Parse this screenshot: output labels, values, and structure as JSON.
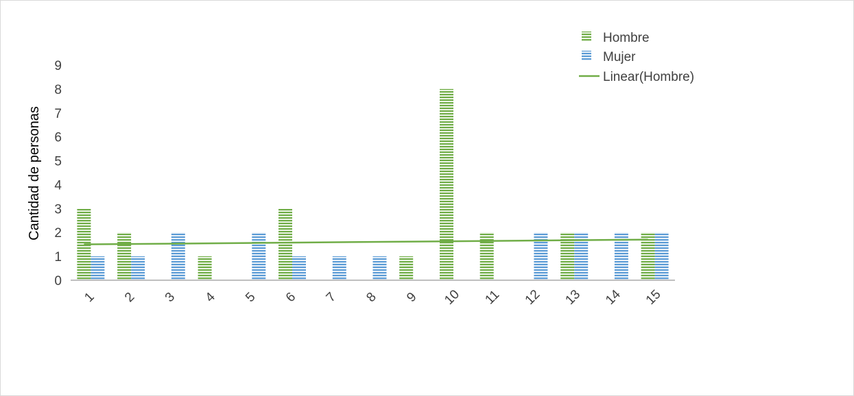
{
  "chart_data": {
    "type": "bar",
    "title": "",
    "xlabel": "",
    "ylabel": "Cantidad de personas",
    "ylim": [
      0,
      9
    ],
    "yticks": [
      0,
      1,
      2,
      3,
      4,
      5,
      6,
      7,
      8,
      9
    ],
    "grid": false,
    "legend_position": "top-right",
    "categories": [
      "1",
      "2",
      "3",
      "4",
      "5",
      "6",
      "7",
      "8",
      "9",
      "10",
      "11",
      "12",
      "13",
      "14",
      "15"
    ],
    "series": [
      {
        "name": "Hombre",
        "color": "#70ad47",
        "values": [
          3,
          2,
          0,
          1,
          0,
          3,
          0,
          0,
          1,
          8,
          2,
          0,
          2,
          0,
          2
        ]
      },
      {
        "name": "Mujer",
        "color": "#5b9bd5",
        "values": [
          1,
          1,
          2,
          0,
          2,
          1,
          1,
          1,
          0,
          0,
          0,
          2,
          2,
          2,
          2
        ]
      }
    ],
    "trendline": {
      "name": "Linear(Hombre)",
      "of": "Hombre",
      "type": "linear",
      "color": "#70ad47"
    }
  }
}
